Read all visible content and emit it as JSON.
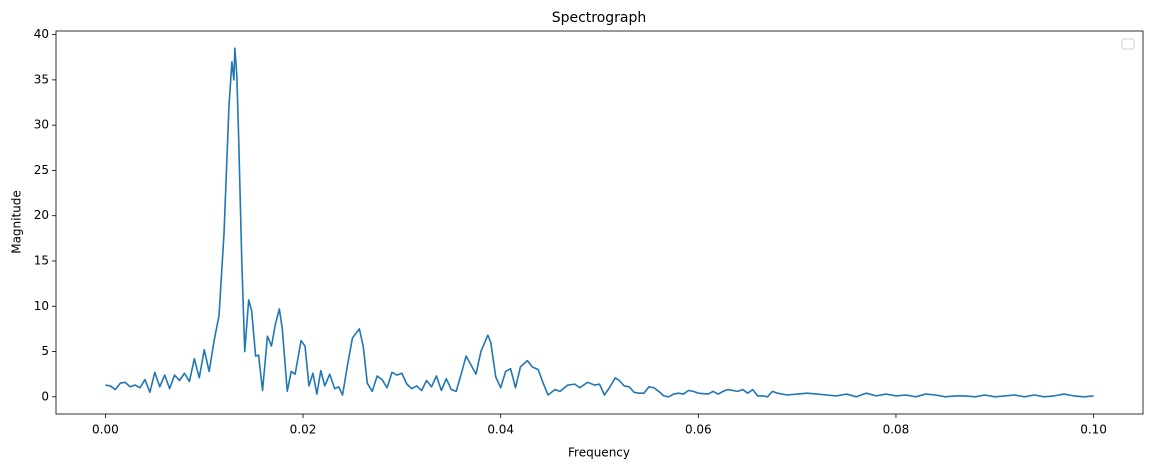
{
  "chart_data": {
    "type": "line",
    "title": "Spectrograph",
    "x_label": "Frequency",
    "y_label": "Magnitude",
    "x": [
      0,
      0.0005,
      0.001,
      0.0015,
      0.002,
      0.0025,
      0.003,
      0.0035,
      0.004,
      0.0045,
      0.005,
      0.0055,
      0.006,
      0.0065,
      0.007,
      0.0075,
      0.008,
      0.0085,
      0.009,
      0.0095,
      0.01,
      0.0105,
      0.011,
      0.0115,
      0.012,
      0.0125,
      0.0128,
      0.013,
      0.0131,
      0.0133,
      0.0135,
      0.0138,
      0.0141,
      0.0145,
      0.0148,
      0.0152,
      0.0155,
      0.0159,
      0.0164,
      0.0168,
      0.0172,
      0.0176,
      0.0179,
      0.0184,
      0.0188,
      0.0192,
      0.0198,
      0.0202,
      0.0206,
      0.021,
      0.0214,
      0.0218,
      0.0222,
      0.0227,
      0.0232,
      0.0236,
      0.024,
      0.0245,
      0.025,
      0.0257,
      0.0261,
      0.0265,
      0.027,
      0.0275,
      0.028,
      0.0285,
      0.029,
      0.0295,
      0.03,
      0.0305,
      0.031,
      0.0315,
      0.032,
      0.0325,
      0.033,
      0.0335,
      0.034,
      0.0345,
      0.035,
      0.0355,
      0.036,
      0.0365,
      0.0375,
      0.038,
      0.0387,
      0.039,
      0.0395,
      0.04,
      0.0405,
      0.041,
      0.0415,
      0.042,
      0.0427,
      0.0432,
      0.0438,
      0.0443,
      0.0448,
      0.0455,
      0.046,
      0.0468,
      0.0475,
      0.048,
      0.0488,
      0.0495,
      0.05,
      0.0505,
      0.051,
      0.0516,
      0.052,
      0.0525,
      0.053,
      0.0535,
      0.054,
      0.0545,
      0.055,
      0.0555,
      0.056,
      0.0565,
      0.057,
      0.0575,
      0.058,
      0.0585,
      0.059,
      0.0595,
      0.06,
      0.061,
      0.0615,
      0.062,
      0.0625,
      0.063,
      0.064,
      0.0645,
      0.065,
      0.0655,
      0.066,
      0.0665,
      0.067,
      0.0675,
      0.068,
      0.069,
      0.07,
      0.071,
      0.072,
      0.073,
      0.074,
      0.075,
      0.076,
      0.077,
      0.078,
      0.079,
      0.08,
      0.081,
      0.082,
      0.083,
      0.084,
      0.085,
      0.086,
      0.087,
      0.088,
      0.089,
      0.09,
      0.091,
      0.092,
      0.093,
      0.094,
      0.095,
      0.096,
      0.097,
      0.098,
      0.099,
      0.1
    ],
    "series": [
      {
        "color": "#1f77b4",
        "values": [
          1.3,
          1.2,
          0.8,
          1.5,
          1.6,
          1.1,
          1.3,
          1.0,
          1.9,
          0.5,
          2.7,
          1.1,
          2.4,
          0.9,
          2.4,
          1.8,
          2.6,
          1.7,
          4.2,
          2.1,
          5.2,
          2.8,
          6.2,
          9.0,
          18,
          32,
          37,
          35,
          38.5,
          35.5,
          28,
          15,
          5.0,
          10.7,
          9.5,
          4.5,
          4.6,
          0.7,
          6.7,
          5.6,
          8,
          9.7,
          7.5,
          0.6,
          2.8,
          2.5,
          6.2,
          5.6,
          1.2,
          2.6,
          0.3,
          2.9,
          1.2,
          2.5,
          0.9,
          1.1,
          0.2,
          3.5,
          6.5,
          7.5,
          5.5,
          1.5,
          0.6,
          2.3,
          1.9,
          1.0,
          2.7,
          2.4,
          2.6,
          1.4,
          0.9,
          1.2,
          0.7,
          1.8,
          1.1,
          2.3,
          0.7,
          2.0,
          0.8,
          0.6,
          2.5,
          4.5,
          2.5,
          5.0,
          6.8,
          6.0,
          2.2,
          1.0,
          2.8,
          3.1,
          1.0,
          3.3,
          4.0,
          3.3,
          3.0,
          1.5,
          0.2,
          0.8,
          0.6,
          1.3,
          1.4,
          1.0,
          1.6,
          1.3,
          1.4,
          0.2,
          1.0,
          2.1,
          1.8,
          1.2,
          1.1,
          0.5,
          0.4,
          0.4,
          1.1,
          1.0,
          0.6,
          0.1,
          0.0,
          0.3,
          0.4,
          0.3,
          0.7,
          0.6,
          0.4,
          0.3,
          0.6,
          0.3,
          0.6,
          0.8,
          0.6,
          0.8,
          0.4,
          0.8,
          0.1,
          0.1,
          0.0,
          0.6,
          0.4,
          0.2,
          0.3,
          0.4,
          0.3,
          0.2,
          0.1,
          0.3,
          0.0,
          0.4,
          0.1,
          0.3,
          0.1,
          0.2,
          0.0,
          0.3,
          0.2,
          0.0,
          0.1,
          0.1,
          0.0,
          0.2,
          0.0,
          0.1,
          0.2,
          0.0,
          0.2,
          0.0,
          0.1,
          0.3,
          0.1,
          0.0,
          0.1
        ]
      }
    ],
    "xlim": [
      -0.005,
      0.105
    ],
    "ylim": [
      -1.9,
      40.4
    ],
    "xticks": [
      {
        "value": 0,
        "label": "0.00"
      },
      0.02,
      0.04,
      0.06,
      0.08,
      {
        "value": 0.1,
        "label": "0.10"
      }
    ],
    "yticks": [
      0,
      5,
      10,
      15,
      20,
      25,
      30,
      35,
      40
    ],
    "legend": "upper right"
  }
}
